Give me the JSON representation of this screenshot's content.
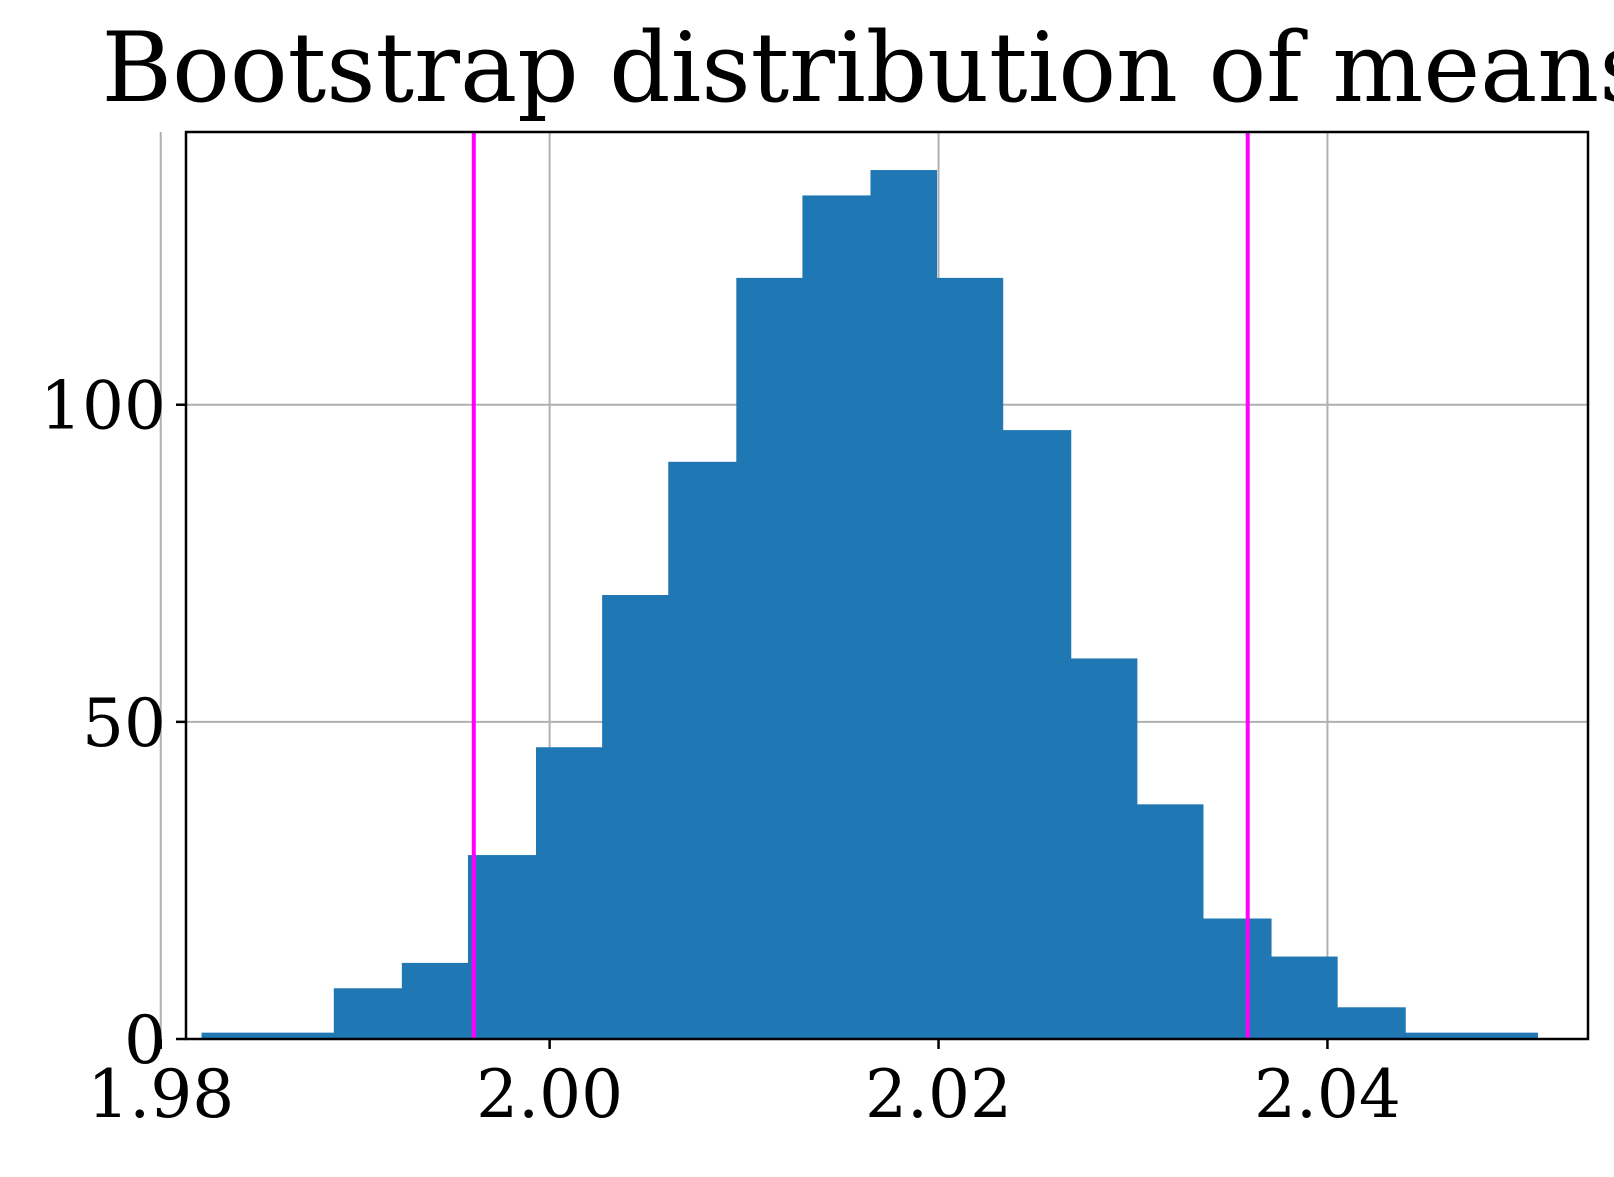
{
  "chart_data": {
    "type": "bar",
    "title": "Bootstrap distribution of means",
    "xlabel": "",
    "ylabel": "",
    "xlim": [
      1.9813,
      2.0534
    ],
    "ylim": [
      0,
      143
    ],
    "grid": true,
    "x_ticks": [
      {
        "value": 1.98,
        "label": "1.98"
      },
      {
        "value": 2.0,
        "label": "2.00"
      },
      {
        "value": 2.02,
        "label": "2.02"
      },
      {
        "value": 2.04,
        "label": "2.04"
      }
    ],
    "y_ticks": [
      {
        "value": 0,
        "label": "0"
      },
      {
        "value": 50,
        "label": "50"
      },
      {
        "value": 100,
        "label": "100"
      }
    ],
    "bar_color": "#1f77b4",
    "bins": [
      {
        "x0": 1.9821,
        "x1": 1.9855,
        "count": 1
      },
      {
        "x0": 1.9855,
        "x1": 1.9889,
        "count": 1
      },
      {
        "x0": 1.9889,
        "x1": 1.9924,
        "count": 8
      },
      {
        "x0": 1.9924,
        "x1": 1.9958,
        "count": 12
      },
      {
        "x0": 1.9958,
        "x1": 1.9993,
        "count": 29
      },
      {
        "x0": 1.9993,
        "x1": 2.0027,
        "count": 46
      },
      {
        "x0": 2.0027,
        "x1": 2.0061,
        "count": 70
      },
      {
        "x0": 2.0061,
        "x1": 2.0096,
        "count": 91
      },
      {
        "x0": 2.0096,
        "x1": 2.013,
        "count": 120
      },
      {
        "x0": 2.013,
        "x1": 2.0165,
        "count": 133
      },
      {
        "x0": 2.0165,
        "x1": 2.0199,
        "count": 137
      },
      {
        "x0": 2.0199,
        "x1": 2.0233,
        "count": 120
      },
      {
        "x0": 2.0233,
        "x1": 2.0268,
        "count": 96
      },
      {
        "x0": 2.0268,
        "x1": 2.0302,
        "count": 60
      },
      {
        "x0": 2.0302,
        "x1": 2.0336,
        "count": 37
      },
      {
        "x0": 2.0336,
        "x1": 2.0371,
        "count": 19
      },
      {
        "x0": 2.0371,
        "x1": 2.0405,
        "count": 13
      },
      {
        "x0": 2.0405,
        "x1": 2.044,
        "count": 5
      },
      {
        "x0": 2.044,
        "x1": 2.0474,
        "count": 1
      },
      {
        "x0": 2.0474,
        "x1": 2.0508,
        "count": 1
      }
    ],
    "vlines": [
      {
        "x": 1.9961,
        "color": "#ff00ff"
      },
      {
        "x": 2.0359,
        "color": "#ff00ff"
      }
    ]
  }
}
